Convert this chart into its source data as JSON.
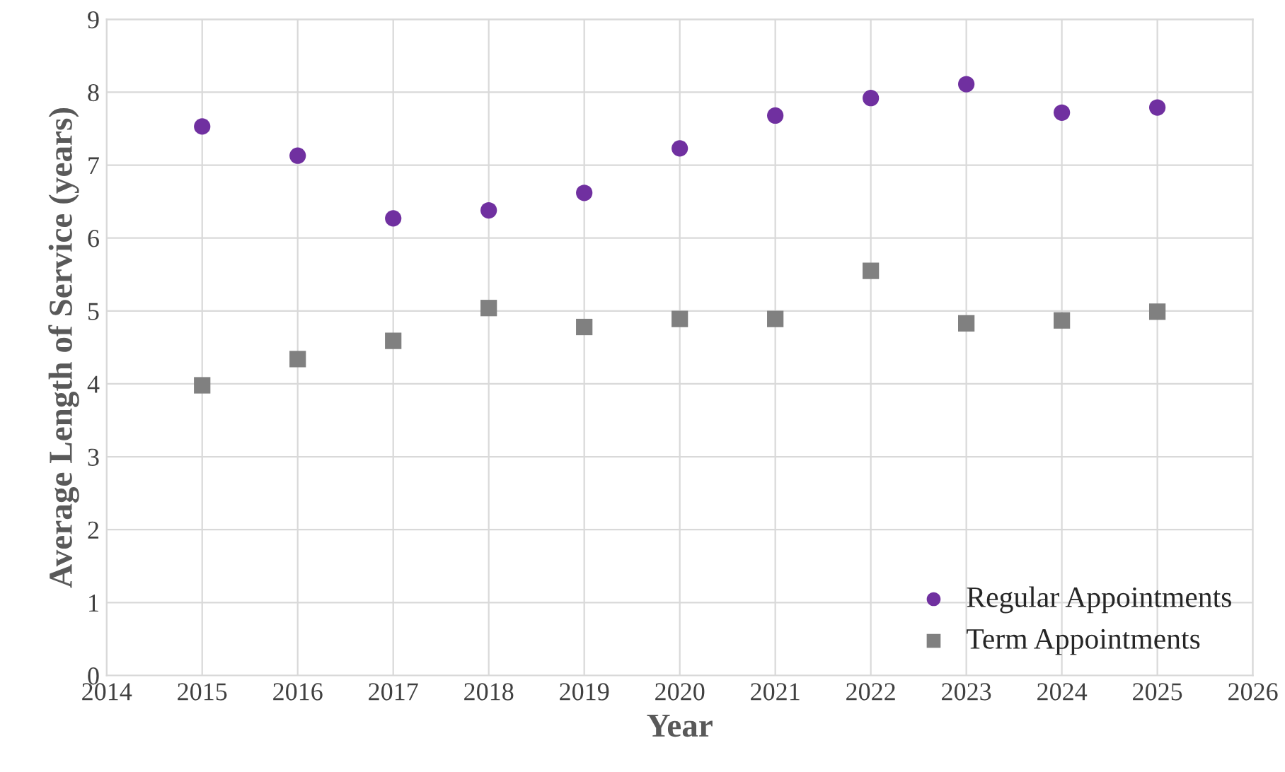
{
  "chart_data": {
    "type": "scatter",
    "xlabel": "Year",
    "ylabel": "Average Length of Service (years)",
    "x": [
      2015,
      2016,
      2017,
      2018,
      2019,
      2020,
      2021,
      2022,
      2023,
      2024,
      2025
    ],
    "series": [
      {
        "name": "Regular Appointments",
        "color": "#7030a0",
        "marker": "circle",
        "values": [
          7.53,
          7.13,
          6.27,
          6.38,
          6.62,
          7.23,
          7.68,
          7.92,
          8.11,
          7.72,
          7.79
        ]
      },
      {
        "name": "Term Appointments",
        "color": "#808080",
        "marker": "square",
        "values": [
          3.98,
          4.34,
          4.59,
          5.04,
          4.78,
          4.89,
          4.89,
          5.55,
          4.83,
          4.87,
          4.99
        ]
      }
    ],
    "xlim": [
      2014,
      2026
    ],
    "xticks": [
      2014,
      2015,
      2016,
      2017,
      2018,
      2019,
      2020,
      2021,
      2022,
      2023,
      2024,
      2025,
      2026
    ],
    "ylim": [
      0,
      9
    ],
    "yticks": [
      0,
      1,
      2,
      3,
      4,
      5,
      6,
      7,
      8,
      9
    ],
    "grid": true,
    "legend": "bottom right"
  }
}
